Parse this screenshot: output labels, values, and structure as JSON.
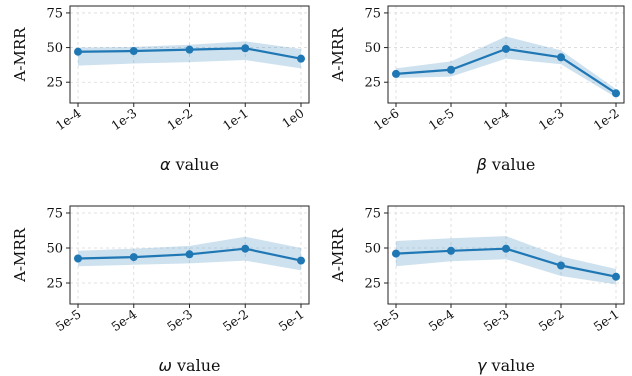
{
  "chart_data": [
    {
      "type": "line",
      "x_param": "α",
      "x_param_suffix": " value",
      "ylabel": "A-MRR",
      "categories": [
        "1e-4",
        "1e-3",
        "1e-2",
        "1e-1",
        "1e0"
      ],
      "y_ticks": [
        25,
        50,
        75
      ],
      "ylim": [
        10,
        80
      ],
      "grid": true,
      "series": [
        {
          "values": [
            47,
            47.5,
            48.5,
            49.5,
            42
          ],
          "lower": [
            37,
            38.5,
            39.5,
            41,
            35
          ],
          "upper": [
            50,
            50.5,
            52,
            54.5,
            49
          ]
        }
      ],
      "colors": {
        "line": "#1f77b4",
        "band": "#1f77b4"
      }
    },
    {
      "type": "line",
      "x_param": "β",
      "x_param_suffix": " value",
      "ylabel": "A-MRR",
      "categories": [
        "1e-6",
        "1e-5",
        "1e-4",
        "1e-3",
        "1e-2"
      ],
      "y_ticks": [
        25,
        50,
        75
      ],
      "ylim": [
        10,
        80
      ],
      "grid": true,
      "series": [
        {
          "values": [
            31,
            34,
            49,
            43,
            17
          ],
          "lower": [
            28,
            29,
            42,
            38,
            14
          ],
          "upper": [
            35,
            40,
            58,
            48,
            20
          ]
        }
      ],
      "colors": {
        "line": "#1f77b4",
        "band": "#1f77b4"
      }
    },
    {
      "type": "line",
      "x_param": "ω",
      "x_param_suffix": " value",
      "ylabel": "A-MRR",
      "categories": [
        "5e-5",
        "5e-4",
        "5e-3",
        "5e-2",
        "5e-1"
      ],
      "y_ticks": [
        25,
        50,
        75
      ],
      "ylim": [
        10,
        80
      ],
      "grid": true,
      "series": [
        {
          "values": [
            42.5,
            43.5,
            45.5,
            49.5,
            41
          ],
          "lower": [
            37,
            38,
            39,
            41,
            34
          ],
          "upper": [
            48,
            49.5,
            51.5,
            58,
            50
          ]
        }
      ],
      "colors": {
        "line": "#1f77b4",
        "band": "#1f77b4"
      }
    },
    {
      "type": "line",
      "x_param": "γ",
      "x_param_suffix": " value",
      "ylabel": "A-MRR",
      "categories": [
        "5e-5",
        "5e-4",
        "5e-3",
        "5e-2",
        "5e-1"
      ],
      "y_ticks": [
        25,
        50,
        75
      ],
      "ylim": [
        10,
        80
      ],
      "grid": true,
      "series": [
        {
          "values": [
            46,
            48,
            49.5,
            37.5,
            29.5
          ],
          "lower": [
            37,
            40.5,
            42,
            30,
            24
          ],
          "upper": [
            55,
            57,
            58.5,
            44,
            35
          ]
        }
      ],
      "colors": {
        "line": "#1f77b4",
        "band": "#1f77b4"
      }
    }
  ]
}
